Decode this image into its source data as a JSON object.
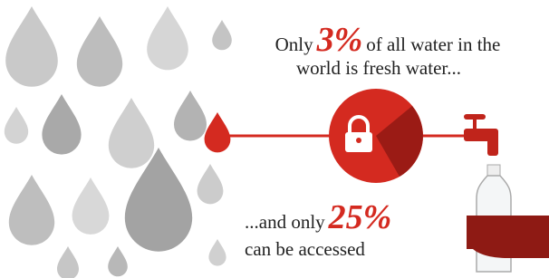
{
  "headline": {
    "lead": "Only",
    "figure": "3%",
    "rest": "of all water in the",
    "line2": "world is fresh water..."
  },
  "subline": {
    "lead": "...and only",
    "figure": "25%",
    "line2": "can be accessed"
  }
}
